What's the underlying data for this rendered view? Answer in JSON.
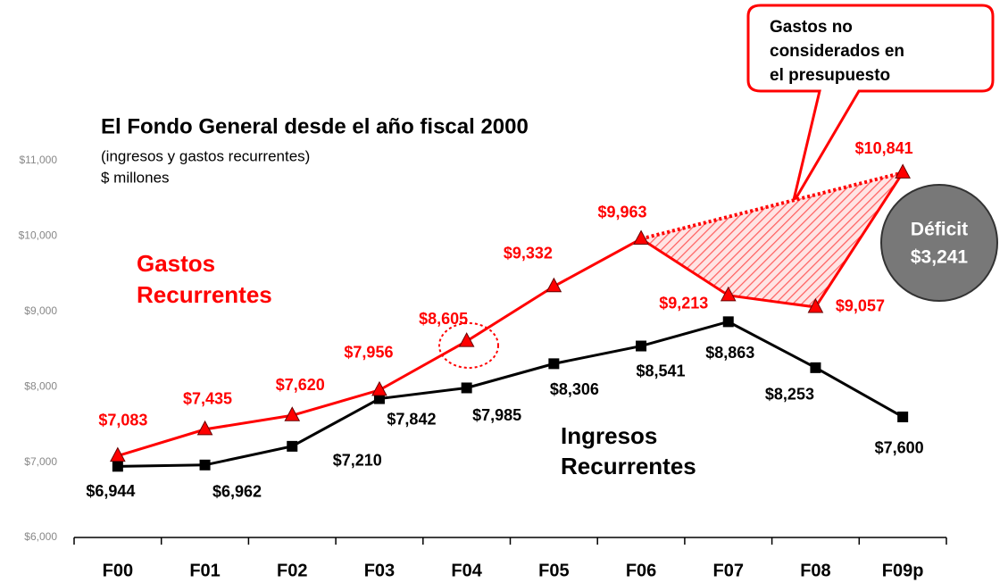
{
  "chart_data": {
    "type": "line",
    "title": "El Fondo General desde el año fiscal 2000",
    "subtitle": [
      "(ingresos y gastos recurrentes)",
      "$ millones"
    ],
    "categories": [
      "F00",
      "F01",
      "F02",
      "F03",
      "F04",
      "F05",
      "F06",
      "F07",
      "F08",
      "F09p"
    ],
    "series": [
      {
        "name": "Gastos Recurrentes",
        "color": "#ff0000",
        "marker": "triangle",
        "values": [
          7083,
          7435,
          7620,
          7956,
          8605,
          9332,
          9963,
          9213,
          9057,
          10841
        ],
        "value_labels": [
          "$7,083",
          "$7,435",
          "$7,620",
          "$7,956",
          "$8,605",
          "$9,332",
          "$9,963",
          "$9,213",
          "$9,057",
          "$10,841"
        ]
      },
      {
        "name": "Ingresos Recurrentes",
        "color": "#000000",
        "marker": "square",
        "values": [
          6944,
          6962,
          7210,
          7842,
          7985,
          8306,
          8541,
          8863,
          8253,
          7600
        ],
        "value_labels": [
          "$6,944",
          "$6,962",
          "$7,210",
          "$7,842",
          "$7,985",
          "$8,306",
          "$8,541",
          "$8,863",
          "$8,253",
          "$7,600"
        ]
      }
    ],
    "ylim": [
      6000,
      11000
    ],
    "yticks": [
      {
        "value": 6000,
        "label": "$6,000"
      },
      {
        "value": 7000,
        "label": "$7,000"
      },
      {
        "value": 8000,
        "label": "$8,000"
      },
      {
        "value": 9000,
        "label": "$9,000"
      },
      {
        "value": 10000,
        "label": "$10,000"
      },
      {
        "value": 11000,
        "label": "$11,000"
      }
    ],
    "callout": [
      "Gastos no",
      "considerados en",
      "el presupuesto"
    ],
    "deficit": [
      "Déficit",
      "$3,241"
    ]
  }
}
